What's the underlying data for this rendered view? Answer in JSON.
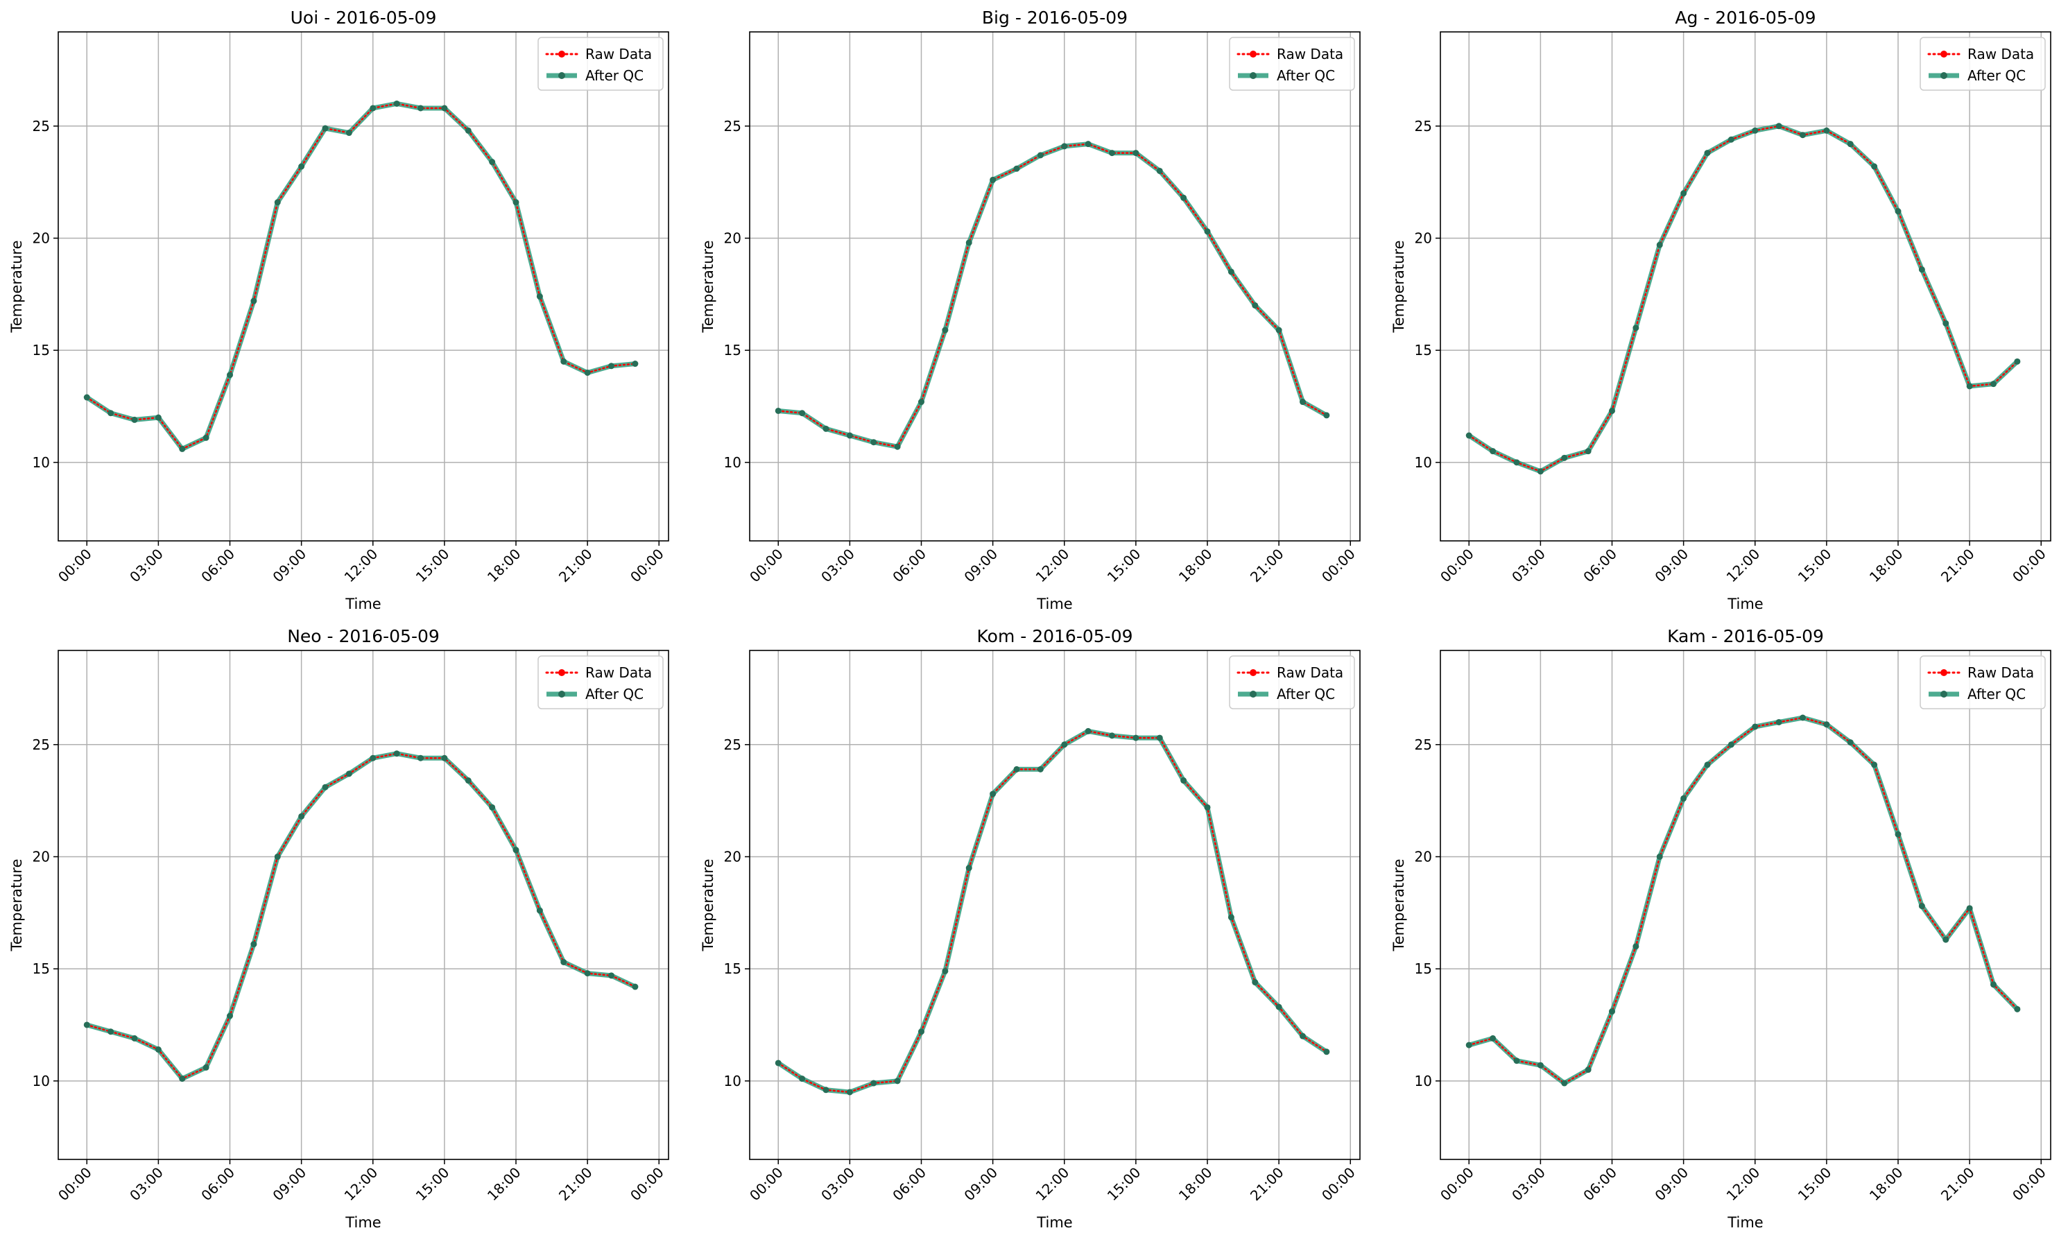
{
  "figure": {
    "colors": {
      "raw": "#ff0000",
      "qc": "#2e9c7c",
      "grid": "#b0b0b0",
      "axis": "#000000"
    },
    "legend": {
      "raw_label": "Raw Data",
      "qc_label": "After QC",
      "placement": "upper right"
    }
  },
  "chart_data": [
    {
      "type": "line",
      "title": "Uoi - 2016-05-09",
      "xlabel": "Time",
      "ylabel": "Temperature",
      "xlim_hours": [
        -1.2,
        24.4
      ],
      "ylim": [
        6.5,
        29.2
      ],
      "xticks": [
        "00:00",
        "03:00",
        "06:00",
        "09:00",
        "12:00",
        "15:00",
        "18:00",
        "21:00",
        "00:00"
      ],
      "yticks": [
        10,
        15,
        20,
        25
      ],
      "grid": true,
      "x_hours": [
        0,
        1,
        2,
        3,
        4,
        5,
        6,
        7,
        8,
        9,
        10,
        11,
        12,
        13,
        14,
        15,
        16,
        17,
        18,
        19,
        20,
        21,
        22,
        23
      ],
      "series": [
        {
          "name": "Raw Data",
          "values": [
            12.9,
            12.2,
            11.9,
            12.0,
            10.6,
            11.1,
            13.9,
            17.2,
            21.6,
            23.2,
            24.9,
            24.7,
            25.8,
            26.0,
            25.8,
            25.8,
            24.8,
            23.4,
            21.6,
            17.4,
            14.5,
            14.0,
            14.3,
            14.4
          ]
        },
        {
          "name": "After QC",
          "values": [
            12.9,
            12.2,
            11.9,
            12.0,
            10.6,
            11.1,
            13.9,
            17.2,
            21.6,
            23.2,
            24.9,
            24.7,
            25.8,
            26.0,
            25.8,
            25.8,
            24.8,
            23.4,
            21.6,
            17.4,
            14.5,
            14.0,
            14.3,
            14.4
          ]
        }
      ]
    },
    {
      "type": "line",
      "title": "Big - 2016-05-09",
      "xlabel": "Time",
      "ylabel": "Temperature",
      "xlim_hours": [
        -1.2,
        24.4
      ],
      "ylim": [
        6.5,
        29.2
      ],
      "xticks": [
        "00:00",
        "03:00",
        "06:00",
        "09:00",
        "12:00",
        "15:00",
        "18:00",
        "21:00",
        "00:00"
      ],
      "yticks": [
        10,
        15,
        20,
        25
      ],
      "grid": true,
      "x_hours": [
        0,
        1,
        2,
        3,
        4,
        5,
        6,
        7,
        8,
        9,
        10,
        11,
        12,
        13,
        14,
        15,
        16,
        17,
        18,
        19,
        20,
        21,
        22,
        23
      ],
      "series": [
        {
          "name": "Raw Data",
          "values": [
            12.3,
            12.2,
            11.5,
            11.2,
            10.9,
            10.7,
            12.7,
            15.9,
            19.8,
            22.6,
            23.1,
            23.7,
            24.1,
            24.2,
            23.8,
            23.8,
            23.0,
            21.8,
            20.3,
            18.5,
            17.0,
            15.9,
            12.7,
            12.1
          ]
        },
        {
          "name": "After QC",
          "values": [
            12.3,
            12.2,
            11.5,
            11.2,
            10.9,
            10.7,
            12.7,
            15.9,
            19.8,
            22.6,
            23.1,
            23.7,
            24.1,
            24.2,
            23.8,
            23.8,
            23.0,
            21.8,
            20.3,
            18.5,
            17.0,
            15.9,
            12.7,
            12.1
          ]
        }
      ]
    },
    {
      "type": "line",
      "title": "Ag - 2016-05-09",
      "xlabel": "Time",
      "ylabel": "Temperature",
      "xlim_hours": [
        -1.2,
        24.4
      ],
      "ylim": [
        6.5,
        29.2
      ],
      "xticks": [
        "00:00",
        "03:00",
        "06:00",
        "09:00",
        "12:00",
        "15:00",
        "18:00",
        "21:00",
        "00:00"
      ],
      "yticks": [
        10,
        15,
        20,
        25
      ],
      "grid": true,
      "x_hours": [
        0,
        1,
        2,
        3,
        4,
        5,
        6,
        7,
        8,
        9,
        10,
        11,
        12,
        13,
        14,
        15,
        16,
        17,
        18,
        19,
        20,
        21,
        22,
        23
      ],
      "series": [
        {
          "name": "Raw Data",
          "values": [
            11.2,
            10.5,
            10.0,
            9.6,
            10.2,
            10.5,
            12.3,
            16.0,
            19.7,
            22.0,
            23.8,
            24.4,
            24.8,
            25.0,
            24.6,
            24.8,
            24.2,
            23.2,
            21.2,
            18.6,
            16.2,
            13.4,
            13.5,
            14.5
          ]
        },
        {
          "name": "After QC",
          "values": [
            11.2,
            10.5,
            10.0,
            9.6,
            10.2,
            10.5,
            12.3,
            16.0,
            19.7,
            22.0,
            23.8,
            24.4,
            24.8,
            25.0,
            24.6,
            24.8,
            24.2,
            23.2,
            21.2,
            18.6,
            16.2,
            13.4,
            13.5,
            14.5
          ]
        }
      ]
    },
    {
      "type": "line",
      "title": "Neo - 2016-05-09",
      "xlabel": "Time",
      "ylabel": "Temperature",
      "xlim_hours": [
        -1.2,
        24.4
      ],
      "ylim": [
        6.5,
        29.2
      ],
      "xticks": [
        "00:00",
        "03:00",
        "06:00",
        "09:00",
        "12:00",
        "15:00",
        "18:00",
        "21:00",
        "00:00"
      ],
      "yticks": [
        10,
        15,
        20,
        25
      ],
      "grid": true,
      "x_hours": [
        0,
        1,
        2,
        3,
        4,
        5,
        6,
        7,
        8,
        9,
        10,
        11,
        12,
        13,
        14,
        15,
        16,
        17,
        18,
        19,
        20,
        21,
        22,
        23
      ],
      "series": [
        {
          "name": "Raw Data",
          "values": [
            12.5,
            12.2,
            11.9,
            11.4,
            10.1,
            10.6,
            12.9,
            16.1,
            20.0,
            21.8,
            23.1,
            23.7,
            24.4,
            24.6,
            24.4,
            24.4,
            23.4,
            22.2,
            20.3,
            17.6,
            15.3,
            14.8,
            14.7,
            14.2
          ]
        },
        {
          "name": "After QC",
          "values": [
            12.5,
            12.2,
            11.9,
            11.4,
            10.1,
            10.6,
            12.9,
            16.1,
            20.0,
            21.8,
            23.1,
            23.7,
            24.4,
            24.6,
            24.4,
            24.4,
            23.4,
            22.2,
            20.3,
            17.6,
            15.3,
            14.8,
            14.7,
            14.2
          ]
        }
      ]
    },
    {
      "type": "line",
      "title": "Kom - 2016-05-09",
      "xlabel": "Time",
      "ylabel": "Temperature",
      "xlim_hours": [
        -1.2,
        24.4
      ],
      "ylim": [
        6.5,
        29.2
      ],
      "xticks": [
        "00:00",
        "03:00",
        "06:00",
        "09:00",
        "12:00",
        "15:00",
        "18:00",
        "21:00",
        "00:00"
      ],
      "yticks": [
        10,
        15,
        20,
        25
      ],
      "grid": true,
      "x_hours": [
        0,
        1,
        2,
        3,
        4,
        5,
        6,
        7,
        8,
        9,
        10,
        11,
        12,
        13,
        14,
        15,
        16,
        17,
        18,
        19,
        20,
        21,
        22,
        23
      ],
      "series": [
        {
          "name": "Raw Data",
          "values": [
            10.8,
            10.1,
            9.6,
            9.5,
            9.9,
            10.0,
            12.2,
            14.9,
            19.5,
            22.8,
            23.9,
            23.9,
            25.0,
            25.6,
            25.4,
            25.3,
            25.3,
            23.4,
            22.2,
            17.3,
            14.4,
            13.3,
            12.0,
            11.3
          ]
        },
        {
          "name": "After QC",
          "values": [
            10.8,
            10.1,
            9.6,
            9.5,
            9.9,
            10.0,
            12.2,
            14.9,
            19.5,
            22.8,
            23.9,
            23.9,
            25.0,
            25.6,
            25.4,
            25.3,
            25.3,
            23.4,
            22.2,
            17.3,
            14.4,
            13.3,
            12.0,
            11.3
          ]
        }
      ]
    },
    {
      "type": "line",
      "title": "Kam - 2016-05-09",
      "xlabel": "Time",
      "ylabel": "Temperature",
      "xlim_hours": [
        -1.2,
        24.4
      ],
      "ylim": [
        6.5,
        29.2
      ],
      "xticks": [
        "00:00",
        "03:00",
        "06:00",
        "09:00",
        "12:00",
        "15:00",
        "18:00",
        "21:00",
        "00:00"
      ],
      "yticks": [
        10,
        15,
        20,
        25
      ],
      "grid": true,
      "x_hours": [
        0,
        1,
        2,
        3,
        4,
        5,
        6,
        7,
        8,
        9,
        10,
        11,
        12,
        13,
        14,
        15,
        16,
        17,
        18,
        19,
        20,
        21,
        22,
        23
      ],
      "series": [
        {
          "name": "Raw Data",
          "values": [
            11.6,
            11.9,
            10.9,
            10.7,
            9.9,
            10.5,
            13.1,
            16.0,
            20.0,
            22.6,
            24.1,
            25.0,
            25.8,
            26.0,
            26.2,
            25.9,
            25.1,
            24.1,
            21.0,
            17.8,
            16.3,
            17.7,
            14.3,
            13.2
          ]
        },
        {
          "name": "After QC",
          "values": [
            11.6,
            11.9,
            10.9,
            10.7,
            9.9,
            10.5,
            13.1,
            16.0,
            20.0,
            22.6,
            24.1,
            25.0,
            25.8,
            26.0,
            26.2,
            25.9,
            25.1,
            24.1,
            21.0,
            17.8,
            16.3,
            17.7,
            14.3,
            13.2
          ]
        }
      ]
    }
  ]
}
